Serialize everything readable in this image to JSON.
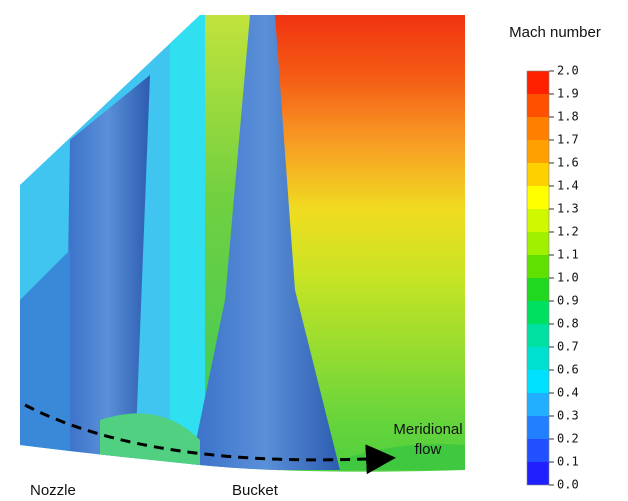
{
  "chart_data": {
    "type": "contour",
    "title": "Mach number",
    "labels": [
      "Nozzle",
      "Bucket"
    ],
    "flow_label": [
      "Meridional",
      "flow"
    ],
    "colorbar": {
      "ticks": [
        {
          "value": 2,
          "label": "2.0"
        },
        1.9,
        1.8,
        1.7,
        1.6,
        1.4,
        1.3,
        1.2,
        1.1,
        {
          "value": 1,
          "label": "1.0"
        },
        0.9,
        0.8,
        0.7,
        0.6,
        0.4,
        0.3,
        0.2,
        0.1,
        {
          "value": 0,
          "label": "0.0"
        }
      ],
      "colors": [
        "#ff2000",
        "#ff5000",
        "#ff8000",
        "#ffa000",
        "#ffd000",
        "#ffff00",
        "#d0f800",
        "#a0f000",
        "#60e000",
        "#20d820",
        "#00e060",
        "#00e0a0",
        "#00e0d0",
        "#00e0ff",
        "#20b0ff",
        "#2080ff",
        "#2050ff",
        "#2020ff"
      ]
    }
  }
}
